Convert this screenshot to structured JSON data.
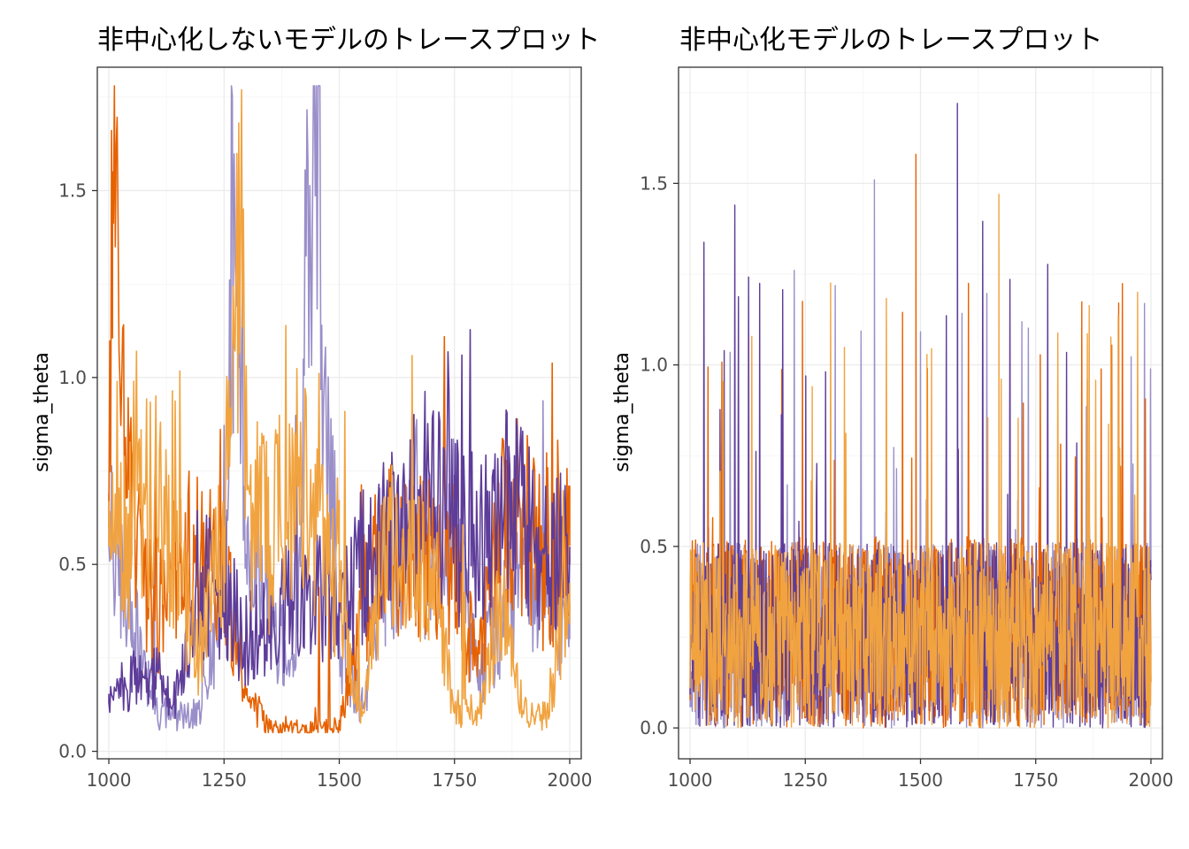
{
  "chart_data": [
    {
      "type": "line",
      "title": "非中心化しないモデルのトレースプロット",
      "xlabel": "",
      "ylabel": "sigma_theta",
      "xlim": [
        975,
        2025
      ],
      "ylim": [
        -0.02,
        1.83
      ],
      "x_ticks": [
        1000,
        1250,
        1500,
        1750,
        2000
      ],
      "x_tick_labels": [
        "1000",
        "1250",
        "1500",
        "1750",
        "2000"
      ],
      "y_ticks": [
        0.0,
        0.5,
        1.0,
        1.5
      ],
      "y_tick_labels": [
        "0.0",
        "0.5",
        "1.0",
        "1.5"
      ],
      "grid": true,
      "legend": "none",
      "series": [
        {
          "color": "#9A8FC9",
          "kind": "trace",
          "x": [
            1000,
            1050,
            1100,
            1150,
            1200,
            1250,
            1270,
            1300,
            1350,
            1400,
            1445,
            1500,
            1550,
            1600,
            1650,
            1700,
            1750,
            1800,
            1850,
            1900,
            1950,
            2000
          ],
          "y": [
            0.55,
            0.4,
            0.1,
            0.1,
            0.1,
            0.45,
            1.47,
            0.6,
            0.35,
            0.2,
            1.78,
            0.3,
            0.12,
            0.5,
            0.55,
            0.45,
            0.6,
            0.2,
            0.35,
            0.5,
            0.45,
            0.3
          ]
        },
        {
          "color": "#E66101",
          "kind": "trace",
          "x": [
            1000,
            1008,
            1050,
            1100,
            1150,
            1200,
            1250,
            1300,
            1350,
            1400,
            1450,
            1500,
            1550,
            1600,
            1650,
            1700,
            1750,
            1800,
            1850,
            1900,
            1950,
            2000
          ],
          "y": [
            0.6,
            1.55,
            0.6,
            0.35,
            0.5,
            0.55,
            0.5,
            0.15,
            0.06,
            0.06,
            0.06,
            0.06,
            0.4,
            0.55,
            0.5,
            0.55,
            0.5,
            0.2,
            0.6,
            0.65,
            0.45,
            0.55
          ]
        },
        {
          "color": "#5E3C99",
          "kind": "trace",
          "x": [
            1000,
            1050,
            1100,
            1150,
            1200,
            1250,
            1300,
            1350,
            1400,
            1450,
            1500,
            1550,
            1600,
            1650,
            1700,
            1750,
            1800,
            1850,
            1900,
            1950,
            2000
          ],
          "y": [
            0.13,
            0.2,
            0.2,
            0.15,
            0.45,
            0.4,
            0.3,
            0.35,
            0.4,
            0.45,
            0.35,
            0.5,
            0.55,
            0.6,
            0.7,
            0.6,
            0.55,
            0.65,
            0.6,
            0.55,
            0.5
          ]
        },
        {
          "color": "#F1A340",
          "kind": "trace",
          "x": [
            1000,
            1050,
            1100,
            1150,
            1200,
            1250,
            1290,
            1300,
            1350,
            1400,
            1450,
            1500,
            1550,
            1600,
            1650,
            1700,
            1750,
            1800,
            1850,
            1900,
            1950,
            2000
          ],
          "y": [
            0.55,
            0.6,
            0.7,
            0.45,
            0.25,
            0.6,
            1.4,
            0.7,
            0.55,
            0.75,
            0.6,
            0.4,
            0.1,
            0.55,
            0.5,
            0.45,
            0.12,
            0.1,
            0.4,
            0.1,
            0.1,
            0.45
          ]
        }
      ]
    },
    {
      "type": "line",
      "title": "非中心化モデルのトレースプロット",
      "xlabel": "",
      "ylabel": "sigma_theta",
      "xlim": [
        975,
        2025
      ],
      "ylim": [
        -0.085,
        1.82
      ],
      "x_ticks": [
        1000,
        1250,
        1500,
        1750,
        2000
      ],
      "x_tick_labels": [
        "1000",
        "1250",
        "1500",
        "1750",
        "2000"
      ],
      "y_ticks": [
        0.0,
        0.5,
        1.0,
        1.5
      ],
      "y_tick_labels": [
        "0.0",
        "0.5",
        "1.0",
        "1.5"
      ],
      "grid": true,
      "legend": "none",
      "series": [
        {
          "color": "#9A8FC9",
          "kind": "noise",
          "mean": 0.33,
          "max": 1.51,
          "min": 0.0
        },
        {
          "color": "#E66101",
          "kind": "noise",
          "mean": 0.34,
          "max": 1.58,
          "min": 0.0
        },
        {
          "color": "#5E3C99",
          "kind": "noise",
          "mean": 0.33,
          "max": 1.72,
          "min": 0.0
        },
        {
          "color": "#F1A340",
          "kind": "noise",
          "mean": 0.33,
          "max": 1.47,
          "min": 0.0
        }
      ]
    }
  ]
}
